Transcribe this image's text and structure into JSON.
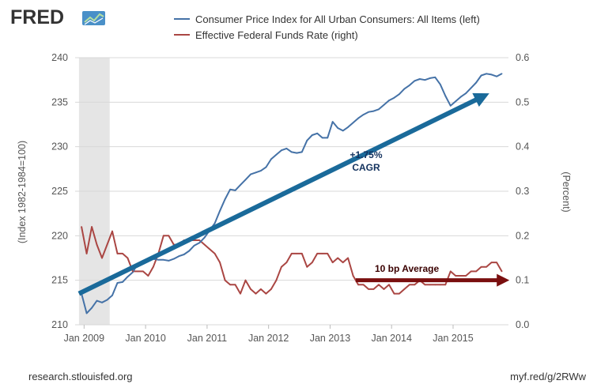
{
  "brand": {
    "logo_text": "FRED"
  },
  "footer": {
    "source_left": "research.stlouisfed.org",
    "source_right": "myf.red/g/2RWw"
  },
  "colors": {
    "cpi": "#4572a7",
    "ffr": "#aa4643",
    "recession": "#e5e5e5",
    "grid": "#d8d8d8",
    "trend_blue": "#1a6a9a",
    "trend_red": "#7a0f0f"
  },
  "chart_data": {
    "type": "line",
    "x_ticks": [
      "Jan 2009",
      "Jan 2010",
      "Jan 2011",
      "Jan 2012",
      "Jan 2013",
      "Jan 2014",
      "Jan 2015"
    ],
    "ylabel_left": "(Index 1982-1984=100)",
    "ylabel_right": "(Percent)",
    "ylim_left": [
      210,
      240
    ],
    "ylim_right": [
      0.0,
      0.6
    ],
    "y_ticks_left": [
      "210",
      "215",
      "220",
      "225",
      "230",
      "235",
      "240"
    ],
    "y_ticks_right": [
      "0.0",
      "0.1",
      "0.2",
      "0.3",
      "0.4",
      "0.5",
      "0.6"
    ],
    "grid": true,
    "legend_position": "top",
    "recession": {
      "start": "2008-12",
      "end": "2009-06"
    },
    "series": [
      {
        "name": "Consumer Price Index for All Urban Consumers: All Items (left)",
        "axis": "left",
        "x": [
          "2008-12",
          "2009-01",
          "2009-02",
          "2009-03",
          "2009-04",
          "2009-05",
          "2009-06",
          "2009-07",
          "2009-08",
          "2009-09",
          "2009-10",
          "2009-11",
          "2009-12",
          "2010-01",
          "2010-02",
          "2010-03",
          "2010-04",
          "2010-05",
          "2010-06",
          "2010-07",
          "2010-08",
          "2010-09",
          "2010-10",
          "2010-11",
          "2010-12",
          "2011-01",
          "2011-02",
          "2011-03",
          "2011-04",
          "2011-05",
          "2011-06",
          "2011-07",
          "2011-08",
          "2011-09",
          "2011-10",
          "2011-11",
          "2011-12",
          "2012-01",
          "2012-02",
          "2012-03",
          "2012-04",
          "2012-05",
          "2012-06",
          "2012-07",
          "2012-08",
          "2012-09",
          "2012-10",
          "2012-11",
          "2012-12",
          "2013-01",
          "2013-02",
          "2013-03",
          "2013-04",
          "2013-05",
          "2013-06",
          "2013-07",
          "2013-08",
          "2013-09",
          "2013-10",
          "2013-11",
          "2013-12",
          "2014-01",
          "2014-02",
          "2014-03",
          "2014-04",
          "2014-05",
          "2014-06",
          "2014-07",
          "2014-08",
          "2014-09",
          "2014-10",
          "2014-11",
          "2014-12",
          "2015-01",
          "2015-02",
          "2015-03",
          "2015-04",
          "2015-05",
          "2015-06",
          "2015-07",
          "2015-08",
          "2015-09",
          "2015-10"
        ],
        "values": [
          213.5,
          211.3,
          211.9,
          212.7,
          212.5,
          212.8,
          213.3,
          214.7,
          214.8,
          215.4,
          215.9,
          216.9,
          217.2,
          217.3,
          217.4,
          217.3,
          217.3,
          217.2,
          217.4,
          217.7,
          217.9,
          218.3,
          218.9,
          219.2,
          219.8,
          220.6,
          221.4,
          222.8,
          224.1,
          225.2,
          225.1,
          225.7,
          226.3,
          226.9,
          227.1,
          227.3,
          227.7,
          228.6,
          229.1,
          229.6,
          229.8,
          229.4,
          229.3,
          229.4,
          230.7,
          231.3,
          231.5,
          231.0,
          231.0,
          232.8,
          232.1,
          231.8,
          232.2,
          232.7,
          233.2,
          233.6,
          233.9,
          234.0,
          234.2,
          234.7,
          235.2,
          235.5,
          235.9,
          236.5,
          236.9,
          237.4,
          237.6,
          237.5,
          237.7,
          237.8,
          237.0,
          235.7,
          234.6,
          235.1,
          235.6,
          236.0,
          236.6,
          237.2,
          238.0,
          238.2,
          238.1,
          237.9,
          238.2
        ]
      },
      {
        "name": "Effective Federal Funds Rate (right)",
        "axis": "right",
        "x": [
          "2008-12",
          "2009-01",
          "2009-02",
          "2009-03",
          "2009-04",
          "2009-05",
          "2009-06",
          "2009-07",
          "2009-08",
          "2009-09",
          "2009-10",
          "2009-11",
          "2009-12",
          "2010-01",
          "2010-02",
          "2010-03",
          "2010-04",
          "2010-05",
          "2010-06",
          "2010-07",
          "2010-08",
          "2010-09",
          "2010-10",
          "2010-11",
          "2010-12",
          "2011-01",
          "2011-02",
          "2011-03",
          "2011-04",
          "2011-05",
          "2011-06",
          "2011-07",
          "2011-08",
          "2011-09",
          "2011-10",
          "2011-11",
          "2011-12",
          "2012-01",
          "2012-02",
          "2012-03",
          "2012-04",
          "2012-05",
          "2012-06",
          "2012-07",
          "2012-08",
          "2012-09",
          "2012-10",
          "2012-11",
          "2012-12",
          "2013-01",
          "2013-02",
          "2013-03",
          "2013-04",
          "2013-05",
          "2013-06",
          "2013-07",
          "2013-08",
          "2013-09",
          "2013-10",
          "2013-11",
          "2013-12",
          "2014-01",
          "2014-02",
          "2014-03",
          "2014-04",
          "2014-05",
          "2014-06",
          "2014-07",
          "2014-08",
          "2014-09",
          "2014-10",
          "2014-11",
          "2014-12",
          "2015-01",
          "2015-02",
          "2015-03",
          "2015-04",
          "2015-05",
          "2015-06",
          "2015-07",
          "2015-08",
          "2015-09",
          "2015-10"
        ],
        "values": [
          0.22,
          0.16,
          0.22,
          0.18,
          0.15,
          0.18,
          0.21,
          0.16,
          0.16,
          0.15,
          0.12,
          0.12,
          0.12,
          0.11,
          0.13,
          0.16,
          0.2,
          0.2,
          0.18,
          0.18,
          0.19,
          0.19,
          0.19,
          0.19,
          0.18,
          0.17,
          0.16,
          0.14,
          0.1,
          0.09,
          0.09,
          0.07,
          0.1,
          0.08,
          0.07,
          0.08,
          0.07,
          0.08,
          0.1,
          0.13,
          0.14,
          0.16,
          0.16,
          0.16,
          0.13,
          0.14,
          0.16,
          0.16,
          0.16,
          0.14,
          0.15,
          0.14,
          0.15,
          0.11,
          0.09,
          0.09,
          0.08,
          0.08,
          0.09,
          0.08,
          0.09,
          0.07,
          0.07,
          0.08,
          0.09,
          0.09,
          0.1,
          0.09,
          0.09,
          0.09,
          0.09,
          0.09,
          0.12,
          0.11,
          0.11,
          0.11,
          0.12,
          0.12,
          0.13,
          0.13,
          0.14,
          0.14,
          0.12
        ]
      }
    ],
    "annotations": [
      {
        "text_line1": "+1.75%",
        "text_line2": "CAGR",
        "arrow_from": [
          "2008-12",
          213.5
        ],
        "arrow_to": [
          "2015-07",
          235.7
        ]
      },
      {
        "text": "10 bp Average",
        "arrow_from": [
          "2013-06",
          0.1
        ],
        "arrow_to": [
          "2015-11",
          0.1
        ]
      }
    ]
  }
}
